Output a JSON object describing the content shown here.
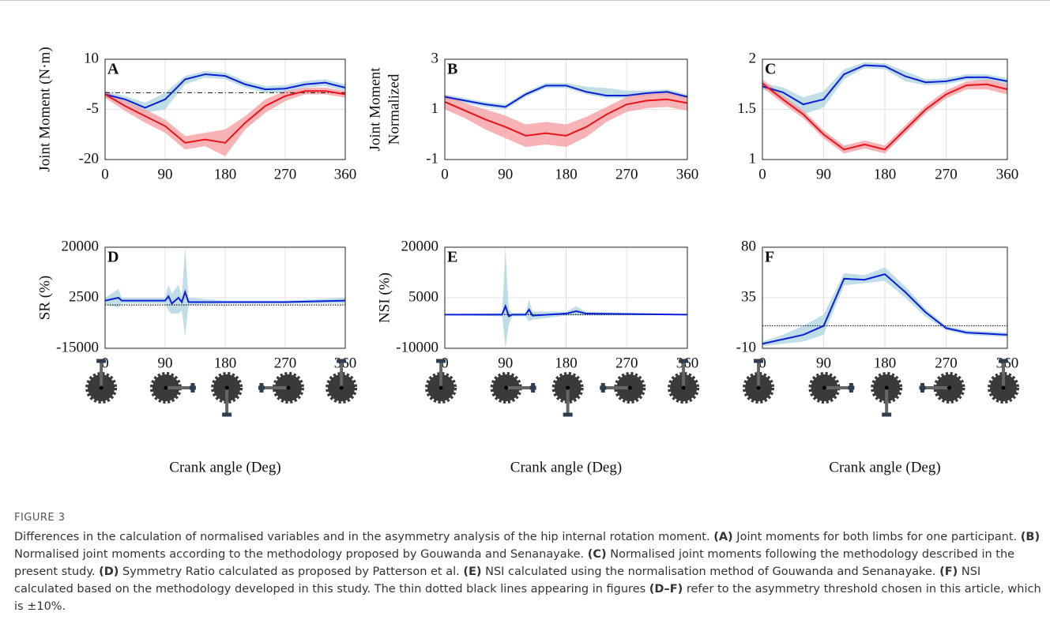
{
  "chart_data": [
    {
      "type": "line",
      "title": "A",
      "ylabel": [
        "Joint Moment (N·m)"
      ],
      "xlim": [
        0,
        360
      ],
      "xticks": [
        0,
        90,
        180,
        270,
        360
      ],
      "ylim": [
        -20,
        10
      ],
      "yticks": [
        -20,
        -5,
        10
      ],
      "grid": true,
      "reference_lines": [
        {
          "value": 0,
          "style": "dashdot"
        }
      ],
      "series": [
        {
          "color": "#0b1fd6",
          "band_color": "#a9d3e0",
          "x": [
            0,
            30,
            60,
            90,
            120,
            150,
            180,
            210,
            240,
            270,
            300,
            330,
            360
          ],
          "values": [
            -0.5,
            -2,
            -4.5,
            -2,
            4,
            5.5,
            5,
            2.5,
            1,
            1.2,
            2.5,
            3,
            1.5
          ],
          "lower": [
            -1.5,
            -3,
            -6,
            -5,
            2.5,
            4.5,
            4,
            1.5,
            0,
            0.2,
            1.5,
            2,
            0.5
          ],
          "upper": [
            0.5,
            -1,
            -3,
            0,
            5,
            6.5,
            6,
            3.5,
            2,
            2.2,
            3.5,
            4,
            2.5
          ]
        },
        {
          "color": "#e8141a",
          "band_color": "#f49a9d",
          "x": [
            0,
            30,
            60,
            90,
            120,
            150,
            180,
            210,
            240,
            270,
            300,
            330,
            360
          ],
          "values": [
            -0.5,
            -4,
            -7,
            -10,
            -15,
            -14,
            -15,
            -9,
            -4,
            -1,
            0.5,
            0.5,
            -0.5
          ],
          "lower": [
            -1.5,
            -5.5,
            -9,
            -12,
            -17,
            -16,
            -19,
            -11,
            -6,
            -2.5,
            -0.5,
            -0.5,
            -1.5
          ],
          "upper": [
            0.5,
            -2.5,
            -5,
            -8,
            -13,
            -12,
            -11,
            -7,
            -2,
            0.5,
            1.5,
            1.5,
            0.5
          ]
        }
      ]
    },
    {
      "type": "line",
      "title": "B",
      "ylabel": [
        "Joint Moment",
        "Normalized"
      ],
      "xlim": [
        0,
        360
      ],
      "xticks": [
        0,
        90,
        180,
        270,
        360
      ],
      "ylim": [
        -1,
        3
      ],
      "yticks": [
        -1,
        1,
        3
      ],
      "grid": true,
      "reference_lines": [],
      "series": [
        {
          "color": "#0b1fd6",
          "band_color": "#a9d3e0",
          "x": [
            0,
            30,
            60,
            90,
            120,
            150,
            180,
            210,
            240,
            270,
            300,
            330,
            360
          ],
          "values": [
            1.5,
            1.35,
            1.2,
            1.1,
            1.6,
            1.95,
            1.95,
            1.7,
            1.55,
            1.55,
            1.65,
            1.7,
            1.5
          ],
          "lower": [
            1.4,
            1.25,
            1.1,
            1.0,
            1.5,
            1.85,
            1.85,
            1.6,
            1.45,
            1.45,
            1.55,
            1.6,
            1.4
          ],
          "upper": [
            1.6,
            1.45,
            1.3,
            1.2,
            1.7,
            2.05,
            2.05,
            1.9,
            1.85,
            1.75,
            1.75,
            1.8,
            1.6
          ]
        },
        {
          "color": "#e8141a",
          "band_color": "#f49a9d",
          "x": [
            0,
            30,
            60,
            90,
            120,
            150,
            180,
            210,
            240,
            270,
            300,
            330,
            360
          ],
          "values": [
            1.3,
            0.95,
            0.6,
            0.3,
            -0.05,
            0.05,
            -0.05,
            0.3,
            0.8,
            1.2,
            1.35,
            1.4,
            1.25
          ],
          "lower": [
            1.0,
            0.65,
            0.2,
            -0.15,
            -0.5,
            -0.4,
            -0.5,
            -0.1,
            0.5,
            0.9,
            1.05,
            1.1,
            0.95
          ],
          "upper": [
            1.6,
            1.25,
            1.0,
            0.75,
            0.4,
            0.5,
            0.4,
            0.7,
            1.1,
            1.5,
            1.65,
            1.7,
            1.55
          ]
        }
      ]
    },
    {
      "type": "line",
      "title": "C",
      "ylabel": [],
      "xlim": [
        0,
        360
      ],
      "xticks": [
        0,
        90,
        180,
        270,
        360
      ],
      "ylim": [
        1,
        2
      ],
      "yticks": [
        1,
        1.5,
        2
      ],
      "grid": true,
      "reference_lines": [],
      "series": [
        {
          "color": "#0b1fd6",
          "band_color": "#a9d3e0",
          "x": [
            0,
            30,
            60,
            90,
            120,
            150,
            180,
            210,
            240,
            270,
            300,
            330,
            360
          ],
          "values": [
            1.73,
            1.67,
            1.55,
            1.6,
            1.85,
            1.94,
            1.93,
            1.83,
            1.77,
            1.78,
            1.82,
            1.82,
            1.78
          ],
          "lower": [
            1.7,
            1.62,
            1.45,
            1.52,
            1.8,
            1.91,
            1.9,
            1.78,
            1.74,
            1.75,
            1.79,
            1.79,
            1.75
          ],
          "upper": [
            1.76,
            1.72,
            1.62,
            1.68,
            1.9,
            1.97,
            1.96,
            1.88,
            1.8,
            1.81,
            1.85,
            1.85,
            1.81
          ]
        },
        {
          "color": "#e8141a",
          "band_color": "#f49a9d",
          "x": [
            0,
            30,
            60,
            90,
            120,
            150,
            180,
            210,
            240,
            270,
            300,
            330,
            360
          ],
          "values": [
            1.76,
            1.6,
            1.45,
            1.25,
            1.1,
            1.15,
            1.1,
            1.3,
            1.5,
            1.65,
            1.74,
            1.75,
            1.7
          ],
          "lower": [
            1.72,
            1.56,
            1.41,
            1.21,
            1.06,
            1.11,
            1.06,
            1.26,
            1.46,
            1.61,
            1.7,
            1.7,
            1.65
          ],
          "upper": [
            1.8,
            1.64,
            1.49,
            1.29,
            1.14,
            1.19,
            1.14,
            1.34,
            1.54,
            1.69,
            1.78,
            1.8,
            1.75
          ]
        }
      ]
    },
    {
      "type": "line",
      "title": "D",
      "ylabel": [
        "SR (%)"
      ],
      "xlabel": "Crank angle (Deg)",
      "xlim": [
        0,
        360
      ],
      "xticks": [
        0,
        90,
        180,
        270,
        360
      ],
      "ylim": [
        -15000,
        20000
      ],
      "yticks": [
        -15000,
        2500,
        20000
      ],
      "grid": true,
      "reference_lines": [
        {
          "value": 10,
          "style": "dotted"
        },
        {
          "value": -10,
          "style": "dotted"
        }
      ],
      "series": [
        {
          "color": "#0b1fd6",
          "band_color": "#a9d3e0",
          "x": [
            0,
            20,
            25,
            45,
            90,
            95,
            100,
            110,
            115,
            120,
            125,
            180,
            270,
            360
          ],
          "values": [
            1500,
            2500,
            1500,
            1500,
            1500,
            3000,
            500,
            2500,
            1000,
            4500,
            1000,
            1000,
            1000,
            1500
          ],
          "lower": [
            500,
            -1000,
            500,
            500,
            500,
            -2000,
            -3000,
            -3000,
            -2000,
            -11000,
            0,
            500,
            500,
            500
          ],
          "upper": [
            2500,
            5500,
            2500,
            2500,
            2500,
            7000,
            4000,
            7000,
            3000,
            20000,
            2500,
            1500,
            1500,
            2500
          ]
        }
      ]
    },
    {
      "type": "line",
      "title": "E",
      "ylabel": [
        "NSI (%)"
      ],
      "xlabel": "Crank angle (Deg)",
      "xlim": [
        0,
        360
      ],
      "xticks": [
        0,
        90,
        180,
        270,
        360
      ],
      "ylim": [
        -10000,
        20000
      ],
      "yticks": [
        -10000,
        5000,
        20000
      ],
      "grid": true,
      "reference_lines": [
        {
          "value": 10,
          "style": "dotted"
        },
        {
          "value": -10,
          "style": "dotted"
        }
      ],
      "series": [
        {
          "color": "#0b1fd6",
          "band_color": "#a9d3e0",
          "x": [
            0,
            85,
            90,
            95,
            100,
            120,
            125,
            130,
            180,
            195,
            210,
            360
          ],
          "values": [
            0,
            0,
            2500,
            -500,
            0,
            0,
            1500,
            -300,
            300,
            1000,
            300,
            0
          ],
          "lower": [
            -100,
            -500,
            -9500,
            -3000,
            -500,
            -500,
            -2000,
            -1500,
            -300,
            -200,
            -300,
            -100
          ],
          "upper": [
            100,
            500,
            19000,
            1500,
            500,
            500,
            4500,
            1000,
            800,
            2500,
            800,
            100
          ]
        }
      ]
    },
    {
      "type": "line",
      "title": "F",
      "ylabel": [],
      "xlabel": "Crank angle (Deg)",
      "xlim": [
        0,
        360
      ],
      "xticks": [
        0,
        90,
        180,
        270,
        360
      ],
      "ylim": [
        -10,
        80
      ],
      "yticks": [
        -10,
        35,
        80
      ],
      "grid": true,
      "reference_lines": [
        {
          "value": 10,
          "style": "dotted"
        },
        {
          "value": -10,
          "style": "dotted"
        }
      ],
      "series": [
        {
          "color": "#0b1fd6",
          "band_color": "#a9d3e0",
          "x": [
            0,
            30,
            60,
            90,
            120,
            150,
            180,
            210,
            240,
            270,
            300,
            330,
            360
          ],
          "values": [
            -6,
            -2,
            2,
            10,
            52,
            51,
            56,
            40,
            22,
            8,
            4,
            3,
            2
          ],
          "lower": [
            -8,
            -6,
            -4,
            2,
            46,
            48,
            50,
            35,
            18,
            6,
            2,
            1,
            0
          ],
          "upper": [
            -4,
            2,
            10,
            20,
            57,
            55,
            62,
            45,
            25,
            10,
            6,
            5,
            4
          ]
        }
      ]
    }
  ],
  "figure": {
    "label": "FIGURE 3",
    "caption": [
      {
        "text": "Differences in the calculation of normalised variables and in the asymmetry analysis of the hip internal rotation moment. ",
        "bold": false
      },
      {
        "text": "(A)",
        "bold": true
      },
      {
        "text": " Joint moments for both limbs for one participant. ",
        "bold": false
      },
      {
        "text": "(B)",
        "bold": true
      },
      {
        "text": " Normalised joint moments according to the methodology proposed by Gouwanda and Senanayake. ",
        "bold": false
      },
      {
        "text": "(C)",
        "bold": true
      },
      {
        "text": " Normalised joint moments following the methodology described in the present study. ",
        "bold": false
      },
      {
        "text": "(D)",
        "bold": true
      },
      {
        "text": " Symmetry Ratio calculated as proposed by Patterson et al. ",
        "bold": false
      },
      {
        "text": "(E)",
        "bold": true
      },
      {
        "text": " NSI calculated using the normalisation method of Gouwanda and Senanayake. ",
        "bold": false
      },
      {
        "text": "(F)",
        "bold": true
      },
      {
        "text": " NSI calculated based on the methodology developed in this study. The thin dotted black lines appearing in figures ",
        "bold": false
      },
      {
        "text": "(D–F)",
        "bold": true
      },
      {
        "text": " refer to the asymmetry threshold chosen in this article, which is ±10%.",
        "bold": false
      }
    ]
  }
}
